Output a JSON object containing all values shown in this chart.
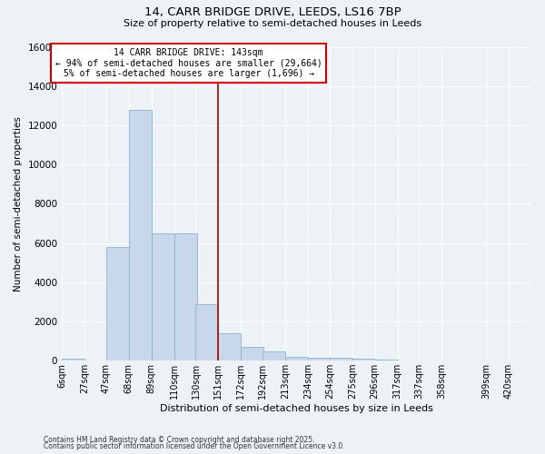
{
  "title_line1": "14, CARR BRIDGE DRIVE, LEEDS, LS16 7BP",
  "title_line2": "Size of property relative to semi-detached houses in Leeds",
  "xlabel": "Distribution of semi-detached houses by size in Leeds",
  "ylabel": "Number of semi-detached properties",
  "bar_color": "#c8d8ea",
  "bar_edge_color": "#8ab4cc",
  "vline_x": 151,
  "vline_color": "#aa0000",
  "annotation_title": "14 CARR BRIDGE DRIVE: 143sqm",
  "annotation_line2": "← 94% of semi-detached houses are smaller (29,664)",
  "annotation_line3": "5% of semi-detached houses are larger (1,696) →",
  "annotation_box_color": "#cc0000",
  "footnote1": "Contains HM Land Registry data © Crown copyright and database right 2025.",
  "footnote2": "Contains public sector information licensed under the Open Government Licence v3.0.",
  "categories": [
    "6sqm",
    "27sqm",
    "47sqm",
    "68sqm",
    "89sqm",
    "110sqm",
    "130sqm",
    "151sqm",
    "172sqm",
    "192sqm",
    "213sqm",
    "234sqm",
    "254sqm",
    "275sqm",
    "296sqm",
    "317sqm",
    "337sqm",
    "358sqm",
    "399sqm",
    "420sqm"
  ],
  "bin_edges": [
    6,
    27,
    47,
    68,
    89,
    110,
    130,
    151,
    172,
    192,
    213,
    234,
    254,
    275,
    296,
    317,
    337,
    358,
    399,
    420
  ],
  "bin_width": 21,
  "values": [
    100,
    0,
    5800,
    12800,
    6500,
    6500,
    2900,
    1400,
    700,
    450,
    200,
    150,
    130,
    80,
    40,
    20,
    10,
    8,
    3,
    0
  ],
  "ylim": [
    0,
    16000
  ],
  "yticks": [
    0,
    2000,
    4000,
    6000,
    8000,
    10000,
    12000,
    14000,
    16000
  ],
  "background_color": "#edf2f7",
  "grid_color": "#ffffff",
  "figwidth": 6.0,
  "figheight": 5.0,
  "dpi": 100
}
